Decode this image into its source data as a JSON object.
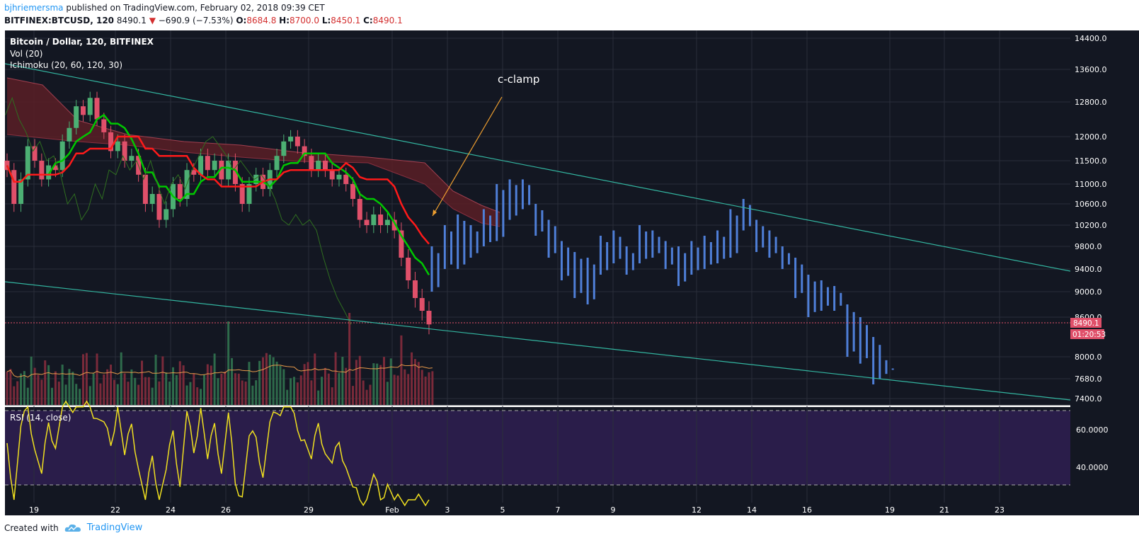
{
  "header": {
    "author": "bjhriemersma",
    "published": "published on TradingView.com, February 02, 2018 09:39 CET",
    "symbol": "BITFINEX:BTCUSD, 120",
    "last": "8490.1",
    "change": "−690.9 (−7.53%)",
    "o_label": "O:",
    "o": "8684.8",
    "h_label": "H:",
    "h": "8700.0",
    "l_label": "L:",
    "l": "8450.1",
    "c_label": "C:",
    "c": "8490.1"
  },
  "legend": {
    "main": "Bitcoin / Dollar, 120, BITFINEX",
    "vol": "Vol (20)",
    "ichimoku": "Ichimoku (20, 60, 120, 30)",
    "rsi": "RSI (14, close)"
  },
  "annotation": {
    "text": "c-clamp"
  },
  "price_tag": {
    "value": "8490.1",
    "countdown": "01:20:53"
  },
  "footer": {
    "created": "Created with",
    "brand": "TradingView"
  },
  "colors": {
    "bg": "#131722",
    "grid": "#2a2e39",
    "up": "#4caf73",
    "down": "#e0506a",
    "projection": "#4f7fd8",
    "trend": "#33b5a0",
    "tenkan": "#00c800",
    "kijun": "#ff1a1a",
    "cloud": "#5a1e26",
    "rsi": "#f0e020",
    "rsi_band": "#2a1d4a",
    "vol_ma": "#e89a4a",
    "annotation": "#f0a030"
  },
  "chart_data": {
    "type": "candlestick",
    "y_axis_ticks": [
      "14400.0",
      "13600.0",
      "12800.0",
      "12000.0",
      "11500.0",
      "11000.0",
      "10600.0",
      "10200.0",
      "9800.0",
      "9400.0",
      "9000.0",
      "8600.0",
      "8000.0",
      "7680.0",
      "7400.0"
    ],
    "x_axis_ticks": [
      "19",
      "22",
      "24",
      "26",
      "29",
      "Feb",
      "3",
      "5",
      "7",
      "9",
      "12",
      "14",
      "16",
      "19",
      "21",
      "23"
    ],
    "rsi_axis_ticks": [
      "60.0000",
      "40.0000"
    ],
    "rsi_bands": [
      70,
      30
    ],
    "candles": [
      [
        11500,
        11300
      ],
      [
        11300,
        10600
      ],
      [
        10600,
        11100
      ],
      [
        11100,
        11800
      ],
      [
        11800,
        11500
      ],
      [
        11500,
        11100
      ],
      [
        11100,
        11400
      ],
      [
        11400,
        11300
      ],
      [
        11300,
        11900
      ],
      [
        11900,
        12200
      ],
      [
        12200,
        12700
      ],
      [
        12700,
        12500
      ],
      [
        12500,
        12900
      ],
      [
        12900,
        12400
      ],
      [
        12400,
        12100
      ],
      [
        12100,
        11700
      ],
      [
        11700,
        11900
      ],
      [
        11900,
        11500
      ],
      [
        11500,
        11600
      ],
      [
        11600,
        11200
      ],
      [
        11200,
        10600
      ],
      [
        10600,
        10800
      ],
      [
        10800,
        10300
      ],
      [
        10300,
        10500
      ],
      [
        10500,
        11000
      ],
      [
        11000,
        10700
      ],
      [
        10700,
        11300
      ],
      [
        11300,
        11200
      ],
      [
        11200,
        11600
      ],
      [
        11600,
        11300
      ],
      [
        11300,
        11500
      ],
      [
        11500,
        11100
      ],
      [
        11100,
        11500
      ],
      [
        11500,
        11000
      ],
      [
        11000,
        10600
      ],
      [
        10600,
        11000
      ],
      [
        11000,
        11200
      ],
      [
        11200,
        10900
      ],
      [
        10900,
        11300
      ],
      [
        11300,
        11600
      ],
      [
        11600,
        11900
      ],
      [
        11900,
        12000
      ],
      [
        12000,
        11800
      ],
      [
        11800,
        11600
      ],
      [
        11600,
        11300
      ],
      [
        11300,
        11500
      ],
      [
        11500,
        11300
      ],
      [
        11300,
        11100
      ],
      [
        11100,
        11200
      ],
      [
        11200,
        11000
      ],
      [
        11000,
        10700
      ],
      [
        10700,
        10300
      ],
      [
        10300,
        10200
      ],
      [
        10200,
        10400
      ],
      [
        10400,
        10200
      ],
      [
        10200,
        10300
      ],
      [
        10300,
        10100
      ],
      [
        10100,
        9600
      ],
      [
        9600,
        9200
      ],
      [
        9200,
        8900
      ],
      [
        8900,
        8700
      ],
      [
        8700,
        8490
      ]
    ],
    "projection_bars": [
      [
        9000,
        9800
      ],
      [
        9400,
        10200
      ],
      [
        9400,
        10400
      ],
      [
        9600,
        10200
      ],
      [
        9800,
        10500
      ],
      [
        9900,
        11000
      ],
      [
        10300,
        11100
      ],
      [
        10500,
        11100
      ],
      [
        10000,
        10600
      ],
      [
        9600,
        10300
      ],
      [
        9200,
        9900
      ],
      [
        8900,
        9700
      ],
      [
        8800,
        9600
      ],
      [
        9300,
        10000
      ],
      [
        9500,
        10100
      ],
      [
        9300,
        9800
      ],
      [
        9500,
        10200
      ],
      [
        9600,
        10100
      ],
      [
        9400,
        9900
      ],
      [
        9100,
        9800
      ],
      [
        9300,
        9900
      ],
      [
        9400,
        10000
      ],
      [
        9500,
        10100
      ],
      [
        9600,
        10500
      ],
      [
        10100,
        10700
      ],
      [
        9700,
        10300
      ],
      [
        9600,
        10100
      ],
      [
        9400,
        9800
      ],
      [
        8900,
        9600
      ],
      [
        8600,
        9300
      ],
      [
        8700,
        9200
      ],
      [
        8700,
        9100
      ],
      [
        8000,
        8800
      ],
      [
        7900,
        8600
      ],
      [
        7600,
        8300
      ],
      [
        7750,
        7950
      ]
    ],
    "price_range": [
      7300,
      14600
    ]
  }
}
